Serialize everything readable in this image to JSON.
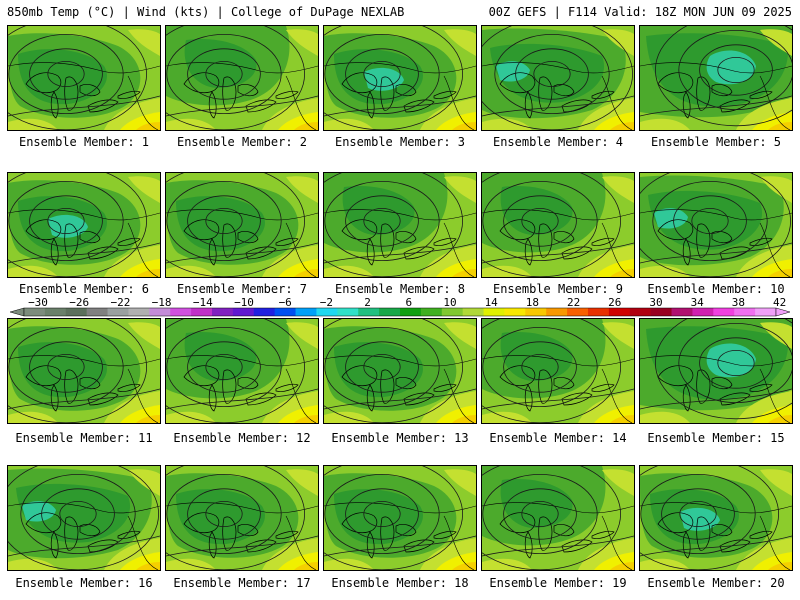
{
  "header": {
    "left": "850mb Temp (°C) | Wind (kts) | College of DuPage NEXLAB",
    "right": "00Z GEFS | F114 Valid: 18Z MON JUN 09 2025"
  },
  "caption_prefix": "Ensemble Member: ",
  "members": [
    {
      "label": "Ensemble Member: 1",
      "number": 1,
      "scheme": "A"
    },
    {
      "label": "Ensemble Member: 2",
      "number": 2,
      "scheme": "B"
    },
    {
      "label": "Ensemble Member: 3",
      "number": 3,
      "scheme": "C"
    },
    {
      "label": "Ensemble Member: 4",
      "number": 4,
      "scheme": "D"
    },
    {
      "label": "Ensemble Member: 5",
      "number": 5,
      "scheme": "E"
    },
    {
      "label": "Ensemble Member: 6",
      "number": 6,
      "scheme": "C"
    },
    {
      "label": "Ensemble Member: 7",
      "number": 7,
      "scheme": "A"
    },
    {
      "label": "Ensemble Member: 8",
      "number": 8,
      "scheme": "B"
    },
    {
      "label": "Ensemble Member: 9",
      "number": 9,
      "scheme": "B"
    },
    {
      "label": "Ensemble Member: 10",
      "number": 10,
      "scheme": "D"
    },
    {
      "label": "Ensemble Member: 11",
      "number": 11,
      "scheme": "A"
    },
    {
      "label": "Ensemble Member: 12",
      "number": 12,
      "scheme": "B"
    },
    {
      "label": "Ensemble Member: 13",
      "number": 13,
      "scheme": "A"
    },
    {
      "label": "Ensemble Member: 14",
      "number": 14,
      "scheme": "B"
    },
    {
      "label": "Ensemble Member: 15",
      "number": 15,
      "scheme": "E"
    },
    {
      "label": "Ensemble Member: 16",
      "number": 16,
      "scheme": "D"
    },
    {
      "label": "Ensemble Member: 17",
      "number": 17,
      "scheme": "A"
    },
    {
      "label": "Ensemble Member: 18",
      "number": 18,
      "scheme": "A"
    },
    {
      "label": "Ensemble Member: 19",
      "number": 19,
      "scheme": "B"
    },
    {
      "label": "Ensemble Member: 20",
      "number": 20,
      "scheme": "C"
    }
  ],
  "colorbar": {
    "labels": [
      "-30",
      "-26",
      "-22",
      "-18",
      "-14",
      "-10",
      "-6",
      "-2",
      "2",
      "6",
      "10",
      "14",
      "18",
      "22",
      "26",
      "30",
      "34",
      "38",
      "42"
    ],
    "colors": [
      "#7c8c7c",
      "#6a806a",
      "#5c705c",
      "#808080",
      "#9aa0a0",
      "#b0b0b0",
      "#c48cd8",
      "#d050e0",
      "#c030c8",
      "#8020c0",
      "#6018d0",
      "#2020e0",
      "#0050f0",
      "#00a0f8",
      "#20d8f0",
      "#30e0c8",
      "#20c080",
      "#18a848",
      "#10a010",
      "#40b020",
      "#80c830",
      "#b0d838",
      "#e0f000",
      "#f8e800",
      "#f8c800",
      "#f89800",
      "#f86000",
      "#e83000",
      "#d00000",
      "#b00010",
      "#980020",
      "#b01070",
      "#d020b0",
      "#f040e0",
      "#f070f0",
      "#f0a0f8"
    ],
    "units": "°C"
  },
  "map_colors": {
    "dark_green": "#2e9a2e",
    "green": "#4caa2c",
    "light_green": "#8ccc2c",
    "yellow_green": "#c4e030",
    "yellow": "#f0f000",
    "gold": "#f4d000",
    "orange": "#f4a000",
    "teal": "#30c898"
  }
}
